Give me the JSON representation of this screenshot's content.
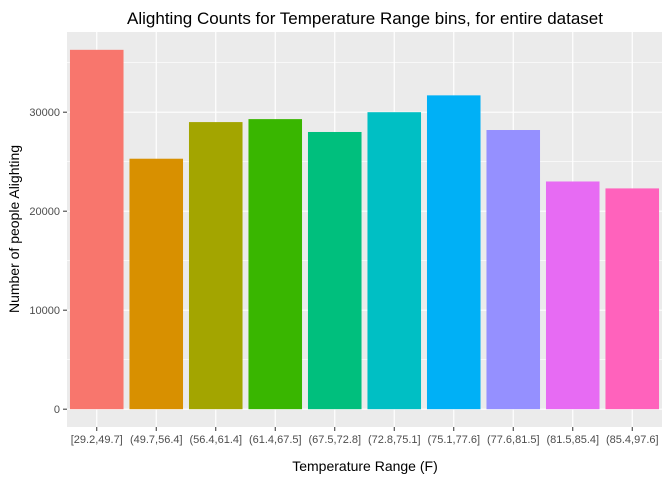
{
  "chart_data": {
    "type": "bar",
    "title": "Alighting Counts for Temperature Range bins, for entire dataset",
    "xlabel": "Temperature Range (F)",
    "ylabel": "Number of people Alighting",
    "categories": [
      "[29.2,49.7]",
      "(49.7,56.4]",
      "(56.4,61.4]",
      "(61.4,67.5]",
      "(67.5,72.8]",
      "(72.8,75.1]",
      "(75.1,77.6]",
      "(77.6,81.5]",
      "(81.5,85.4]",
      "(85.4,97.6]"
    ],
    "values": [
      36300,
      25300,
      29000,
      29300,
      28000,
      30000,
      31700,
      28200,
      23000,
      22300
    ],
    "colors": [
      "#F8766D",
      "#D89000",
      "#A3A500",
      "#39B600",
      "#00BF7D",
      "#00BFC4",
      "#00B0F6",
      "#9590FF",
      "#E76BF3",
      "#FF62BC"
    ],
    "yticks": [
      0,
      10000,
      20000,
      30000
    ],
    "ylim": [
      -1800,
      38100
    ],
    "grid": true,
    "background": "#EBEBEB",
    "gridline_color": "#FFFFFF"
  }
}
